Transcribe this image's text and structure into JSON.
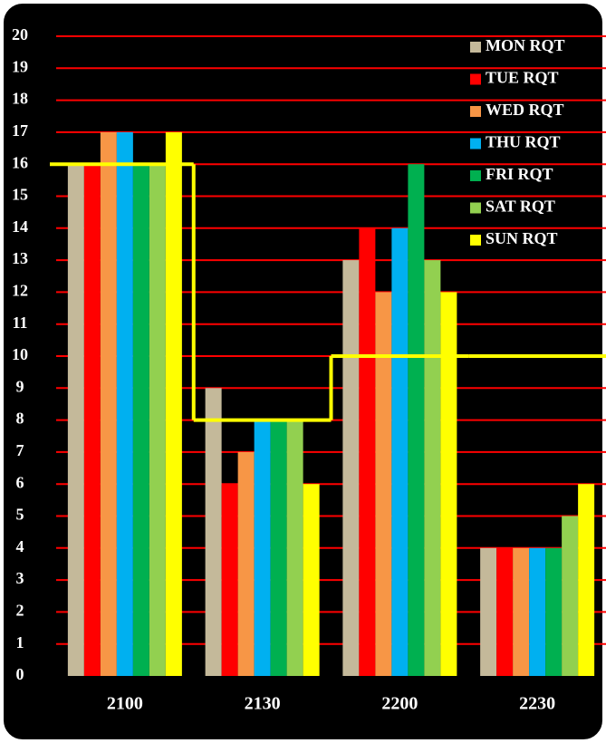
{
  "chart_data": {
    "type": "bar",
    "categories": [
      "2100",
      "2130",
      "2200",
      "2230"
    ],
    "series": [
      {
        "name": "MON RQT",
        "color": "#c4b99a",
        "values": [
          16,
          9,
          13,
          4
        ]
      },
      {
        "name": "TUE RQT",
        "color": "#ff0000",
        "values": [
          16,
          6,
          14,
          4
        ]
      },
      {
        "name": "WED RQT",
        "color": "#f79646",
        "values": [
          17,
          7,
          12,
          4
        ]
      },
      {
        "name": "THU RQT",
        "color": "#00b0f0",
        "values": [
          17,
          8,
          14,
          4
        ]
      },
      {
        "name": "FRI RQT",
        "color": "#00b050",
        "values": [
          16,
          8,
          16,
          4
        ]
      },
      {
        "name": "SAT RQT",
        "color": "#92d050",
        "values": [
          16,
          8,
          13,
          5
        ]
      },
      {
        "name": "SUN RQT",
        "color": "#ffff00",
        "values": [
          17,
          6,
          12,
          6
        ]
      }
    ],
    "step_line": {
      "color": "#ffff00",
      "values": [
        16,
        8,
        10,
        10
      ]
    },
    "ylim": [
      0,
      20
    ],
    "yticks": [
      0,
      1,
      2,
      3,
      4,
      5,
      6,
      7,
      8,
      9,
      10,
      11,
      12,
      13,
      14,
      15,
      16,
      17,
      18,
      19,
      20
    ],
    "grid": true,
    "grid_color": "#ff0000",
    "legend": "upper right"
  }
}
